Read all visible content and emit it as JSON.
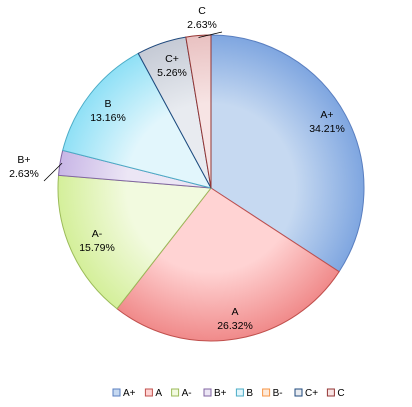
{
  "chart_data": {
    "type": "pie",
    "title": "",
    "start_angle_deg": 0,
    "direction": "clockwise",
    "legend_position": "bottom",
    "slices": [
      {
        "name": "A+",
        "value": 34.21,
        "label": "34.21%",
        "fill": "#c6d9f1",
        "fill_dark": "#7fa6e0",
        "stroke": "#5a7fc0"
      },
      {
        "name": "A",
        "value": 26.32,
        "label": "26.32%",
        "fill": "#ffd3d3",
        "fill_dark": "#f08a8a",
        "stroke": "#c0504d"
      },
      {
        "name": "A-",
        "value": 15.79,
        "label": "15.79%",
        "fill": "#f2fadf",
        "fill_dark": "#d4ef9a",
        "stroke": "#9bbb59"
      },
      {
        "name": "B+",
        "value": 2.63,
        "label": "2.63%",
        "fill": "#ece6f5",
        "fill_dark": "#c8b6e6",
        "stroke": "#8064a2"
      },
      {
        "name": "B",
        "value": 13.16,
        "label": "13.16%",
        "fill": "#e2f6fc",
        "fill_dark": "#8fe0f6",
        "stroke": "#4bacc6"
      },
      {
        "name": "C+",
        "value": 5.26,
        "label": "5.26%",
        "fill": "#e8ebf0",
        "fill_dark": "#c5cad5",
        "stroke": "#1f497d"
      },
      {
        "name": "C",
        "value": 2.63,
        "label": "2.63%",
        "fill": "#f7e4e4",
        "fill_dark": "#e9c1c1",
        "stroke": "#943634"
      }
    ],
    "legend": [
      {
        "name": "A+",
        "fill": "#c6d9f1",
        "stroke": "#5a7fc0"
      },
      {
        "name": "A",
        "fill": "#ffd3d3",
        "stroke": "#c0504d"
      },
      {
        "name": "A-",
        "fill": "#f2fadf",
        "stroke": "#9bbb59"
      },
      {
        "name": "B+",
        "fill": "#ece6f5",
        "stroke": "#8064a2"
      },
      {
        "name": "B",
        "fill": "#e2f6fc",
        "stroke": "#4bacc6"
      },
      {
        "name": "B-",
        "fill": "#fde9d9",
        "stroke": "#f79646"
      },
      {
        "name": "C+",
        "fill": "#e8ebf0",
        "stroke": "#1f497d"
      },
      {
        "name": "C",
        "fill": "#f7e4e4",
        "stroke": "#943634"
      }
    ]
  }
}
